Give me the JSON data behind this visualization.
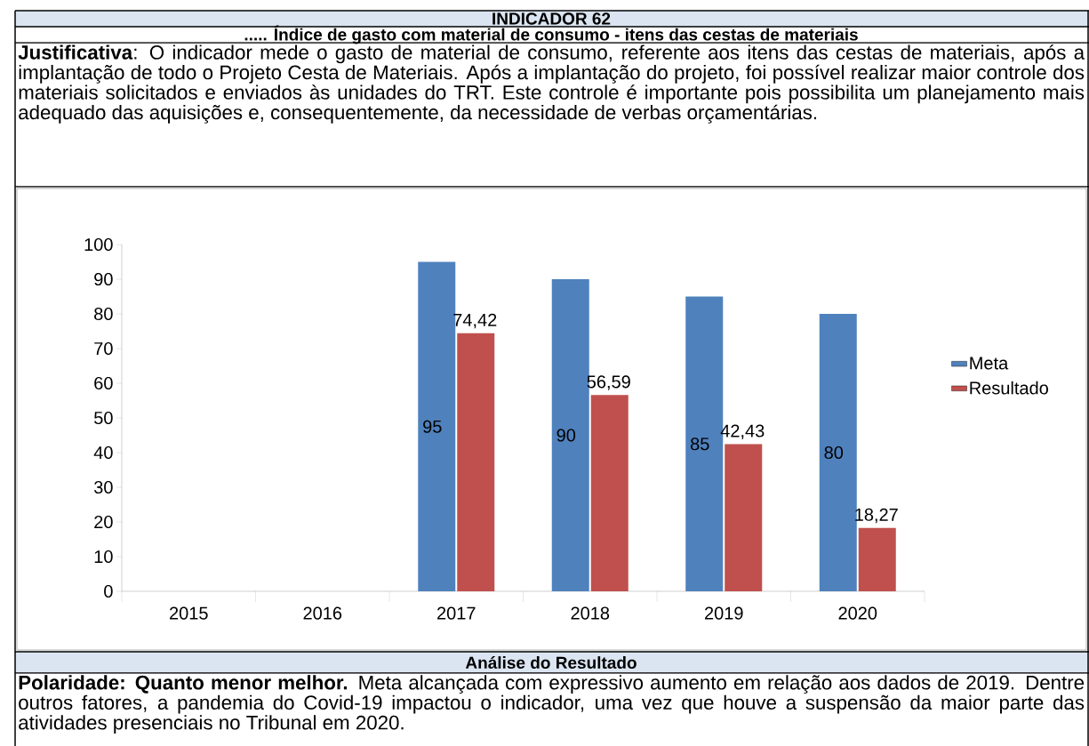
{
  "chart_data": {
    "type": "bar",
    "title": "INDICADOR 62",
    "subtitle": "..... Índice de gasto com material de consumo - itens das cestas de materiais",
    "annotations": [
      "**Justificativa**: O indicador mede o gasto de material de consumo, referente aos itens das cestas de materiais, após a implantação de todo o Projeto Cesta de Materiais. Após a implantação do projeto, foi possível realizar maior controle dos materiais solicitados e enviados às unidades do TRT. Este controle é importante pois possibilita um planejamento mais adequado das aquisições e, consequentemente, da necessidade de verbas orçamentárias.",
      "Análise do Resultado",
      "**Polaridade: Quanto menor melhor.** Meta alcançada com expressivo aumento em relação aos dados de 2019. Dentre outros fatores, a pandemia do Covid-19 impactou o indicador, uma vez que houve a suspensão da maior parte das atividades presenciais no Tribunal em 2020."
    ],
    "categories": [
      "2015",
      "2016",
      "2017",
      "2018",
      "2019",
      "2020"
    ],
    "series": [
      {
        "name": "Meta",
        "color": "#4f81bd",
        "values": [
          null,
          null,
          95,
          90,
          85,
          80
        ],
        "value_labels": [
          null,
          null,
          "95",
          "90",
          "85",
          "80"
        ]
      },
      {
        "name": "Resultado",
        "color": "#c0504d",
        "values": [
          null,
          null,
          74.42,
          56.59,
          42.43,
          18.27
        ],
        "value_labels": [
          null,
          null,
          "74,42",
          "56,59",
          "42,43",
          "18,27"
        ]
      }
    ],
    "ylim": [
      0,
      100
    ],
    "yticks": [
      0,
      10,
      20,
      30,
      40,
      50,
      60,
      70,
      80,
      90,
      100
    ],
    "legend": "right",
    "grid": false
  }
}
